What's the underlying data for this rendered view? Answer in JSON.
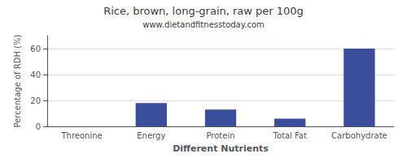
{
  "chart_data": {
    "type": "bar",
    "title": "Rice, brown, long-grain, raw per 100g",
    "subtitle": "www.dietandfitnesstoday.com",
    "xlabel": "Different Nutrients",
    "ylabel": "Percentage of RDH (%)",
    "categories": [
      "Threonine",
      "Energy",
      "Protein",
      "Total Fat",
      "Carbohydrate"
    ],
    "values": [
      0,
      18,
      13,
      6,
      60
    ],
    "color": "#3a4e9c",
    "ylim": [
      0,
      70
    ],
    "yticks": [
      0,
      20,
      40,
      60
    ],
    "grid": true
  }
}
